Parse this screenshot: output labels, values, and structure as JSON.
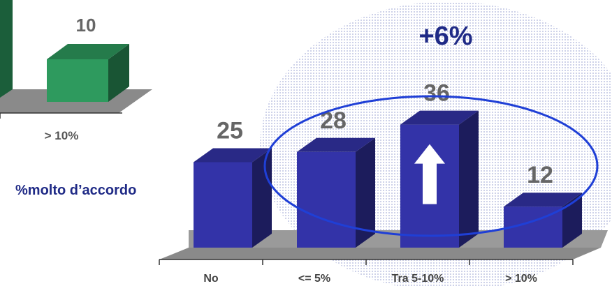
{
  "chart_data": [
    {
      "type": "bar",
      "categories": [
        "> 10%"
      ],
      "values": [
        10
      ],
      "colors": {
        "bar": "#2e9a5e",
        "floor": "#8a8a8a"
      }
    },
    {
      "type": "bar",
      "categories": [
        "No",
        "<= 5%",
        "Tra 5-10%",
        "> 10%"
      ],
      "values": [
        25,
        28,
        36,
        12
      ],
      "ylim": [
        0,
        40
      ],
      "colors": {
        "bar": "#3333a8",
        "floor": "#8a8a8a",
        "highlight_ring": "#1f3fd6"
      },
      "annotations": {
        "delta": "+6%",
        "side_label": "%molto d’accordo",
        "up_arrow_on": "Tra 5-10%"
      }
    }
  ]
}
